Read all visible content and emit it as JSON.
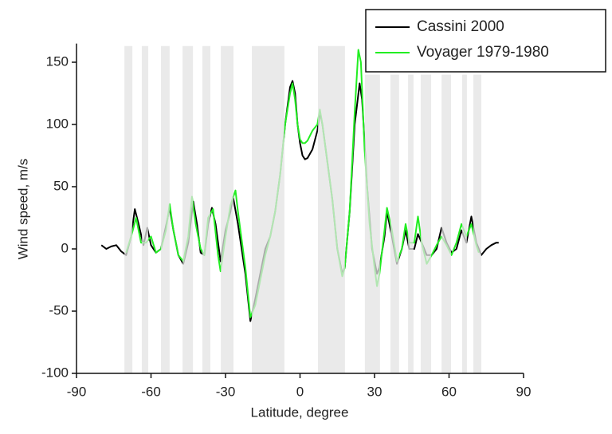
{
  "chart_data": {
    "type": "line",
    "x_label": "Latitude, degree",
    "y_label": "Wind speed, m/s",
    "xlim": [
      -90,
      90
    ],
    "ylim": [
      -100,
      165
    ],
    "xticks": [
      -90,
      -60,
      -30,
      0,
      30,
      60,
      90
    ],
    "yticks": [
      -100,
      -50,
      0,
      50,
      100,
      150
    ],
    "legend": "upper right",
    "band_color": "#e3e3e3",
    "bands": [
      {
        "x0": -70.7,
        "x1": -67.5,
        "top": 163
      },
      {
        "x0": -63.7,
        "x1": -61.1,
        "top": 163
      },
      {
        "x0": -56,
        "x1": -52.5,
        "top": 163
      },
      {
        "x0": -47.3,
        "x1": -43.1,
        "top": 163
      },
      {
        "x0": -39.3,
        "x1": -36.1,
        "top": 163
      },
      {
        "x0": -31.9,
        "x1": -26.8,
        "top": 163
      },
      {
        "x0": -19.4,
        "x1": -6.3,
        "top": 163
      },
      {
        "x0": 7.2,
        "x1": 18.1,
        "top": 163
      },
      {
        "x0": 26.1,
        "x1": 32.2,
        "top": 140
      },
      {
        "x0": 36.4,
        "x1": 39.9,
        "top": 140
      },
      {
        "x0": 43.5,
        "x1": 45.7,
        "top": 140
      },
      {
        "x0": 48.6,
        "x1": 52.8,
        "top": 140
      },
      {
        "x0": 57,
        "x1": 60.8,
        "top": 140
      },
      {
        "x0": 65.3,
        "x1": 67.2,
        "top": 140
      },
      {
        "x0": 69.8,
        "x1": 73,
        "top": 140
      }
    ],
    "series": [
      {
        "name": "Cassini 2000",
        "color": "#000000",
        "x": [
          -80,
          -78,
          -76,
          -74,
          -72,
          -70,
          -68,
          -66.5,
          -65,
          -63,
          -61.5,
          -60,
          -58,
          -56,
          -54,
          -52.5,
          -51,
          -49,
          -47,
          -45,
          -43,
          -41.5,
          -40,
          -38.5,
          -37,
          -35.5,
          -34,
          -32,
          -30,
          -28,
          -27,
          -25,
          -22,
          -20,
          -18,
          -16,
          -14,
          -12,
          -10,
          -8,
          -6,
          -4,
          -3,
          -2,
          -1,
          0,
          1,
          2,
          3,
          5,
          7,
          8,
          9,
          11,
          13,
          15,
          17,
          18,
          20,
          22,
          24,
          25,
          27,
          29,
          31,
          32,
          34,
          35,
          37,
          39,
          41,
          42.5,
          44,
          46,
          47.5,
          49,
          51,
          53,
          55,
          57,
          59,
          61,
          63,
          65,
          67,
          69,
          71,
          73,
          75,
          77,
          79,
          80
        ],
        "values": [
          3,
          0,
          2,
          3,
          -2,
          -5,
          10,
          32,
          20,
          3,
          17,
          3,
          -3,
          0,
          18,
          33,
          15,
          -5,
          -12,
          5,
          38,
          20,
          -3,
          -5,
          20,
          33,
          20,
          -10,
          15,
          30,
          42,
          20,
          -20,
          -58,
          -40,
          -20,
          0,
          10,
          30,
          60,
          100,
          130,
          135,
          125,
          100,
          85,
          75,
          72,
          73,
          80,
          95,
          110,
          100,
          70,
          40,
          0,
          -20,
          -15,
          30,
          100,
          133,
          120,
          50,
          0,
          -20,
          -15,
          10,
          30,
          10,
          -12,
          0,
          15,
          0,
          0,
          12,
          5,
          -5,
          -5,
          0,
          17,
          5,
          -3,
          0,
          15,
          5,
          26,
          5,
          -5,
          0,
          3,
          5,
          5
        ]
      },
      {
        "name": "Voyager 1979-1980",
        "color": "#22ee22",
        "x": [
          -70,
          -68,
          -66,
          -64,
          -62,
          -60,
          -58,
          -56,
          -54,
          -52.5,
          -51,
          -49,
          -47,
          -45,
          -43.5,
          -42,
          -40,
          -38.5,
          -37,
          -35,
          -33,
          -32,
          -30,
          -28,
          -26,
          -25,
          -22,
          -20,
          -18,
          -16,
          -14,
          -12,
          -10,
          -8,
          -6,
          -4,
          -3,
          -2,
          -1,
          0,
          1,
          2,
          3,
          5,
          7,
          8,
          9,
          11,
          13,
          15,
          17,
          18,
          20,
          22,
          23.5,
          24.5,
          26,
          28,
          30,
          31,
          32,
          34,
          35,
          37,
          39,
          41,
          42.5,
          44,
          46,
          47.5,
          49,
          51,
          53,
          55,
          57,
          59,
          61,
          63,
          65,
          67,
          69,
          71,
          72
        ],
        "values": [
          -3,
          10,
          25,
          5,
          5,
          10,
          -3,
          0,
          15,
          36,
          15,
          -5,
          -10,
          10,
          42,
          20,
          0,
          -5,
          25,
          32,
          -5,
          -18,
          10,
          35,
          47,
          30,
          -15,
          -55,
          -45,
          -25,
          -5,
          10,
          30,
          60,
          100,
          125,
          133,
          120,
          100,
          88,
          85,
          85,
          87,
          95,
          100,
          112,
          100,
          70,
          40,
          0,
          -22,
          -15,
          30,
          110,
          160,
          150,
          80,
          20,
          -15,
          -30,
          -20,
          15,
          33,
          15,
          -10,
          0,
          20,
          5,
          5,
          26,
          5,
          -12,
          -5,
          3,
          10,
          3,
          -5,
          5,
          20,
          10,
          20,
          3,
          -3
        ]
      }
    ]
  }
}
